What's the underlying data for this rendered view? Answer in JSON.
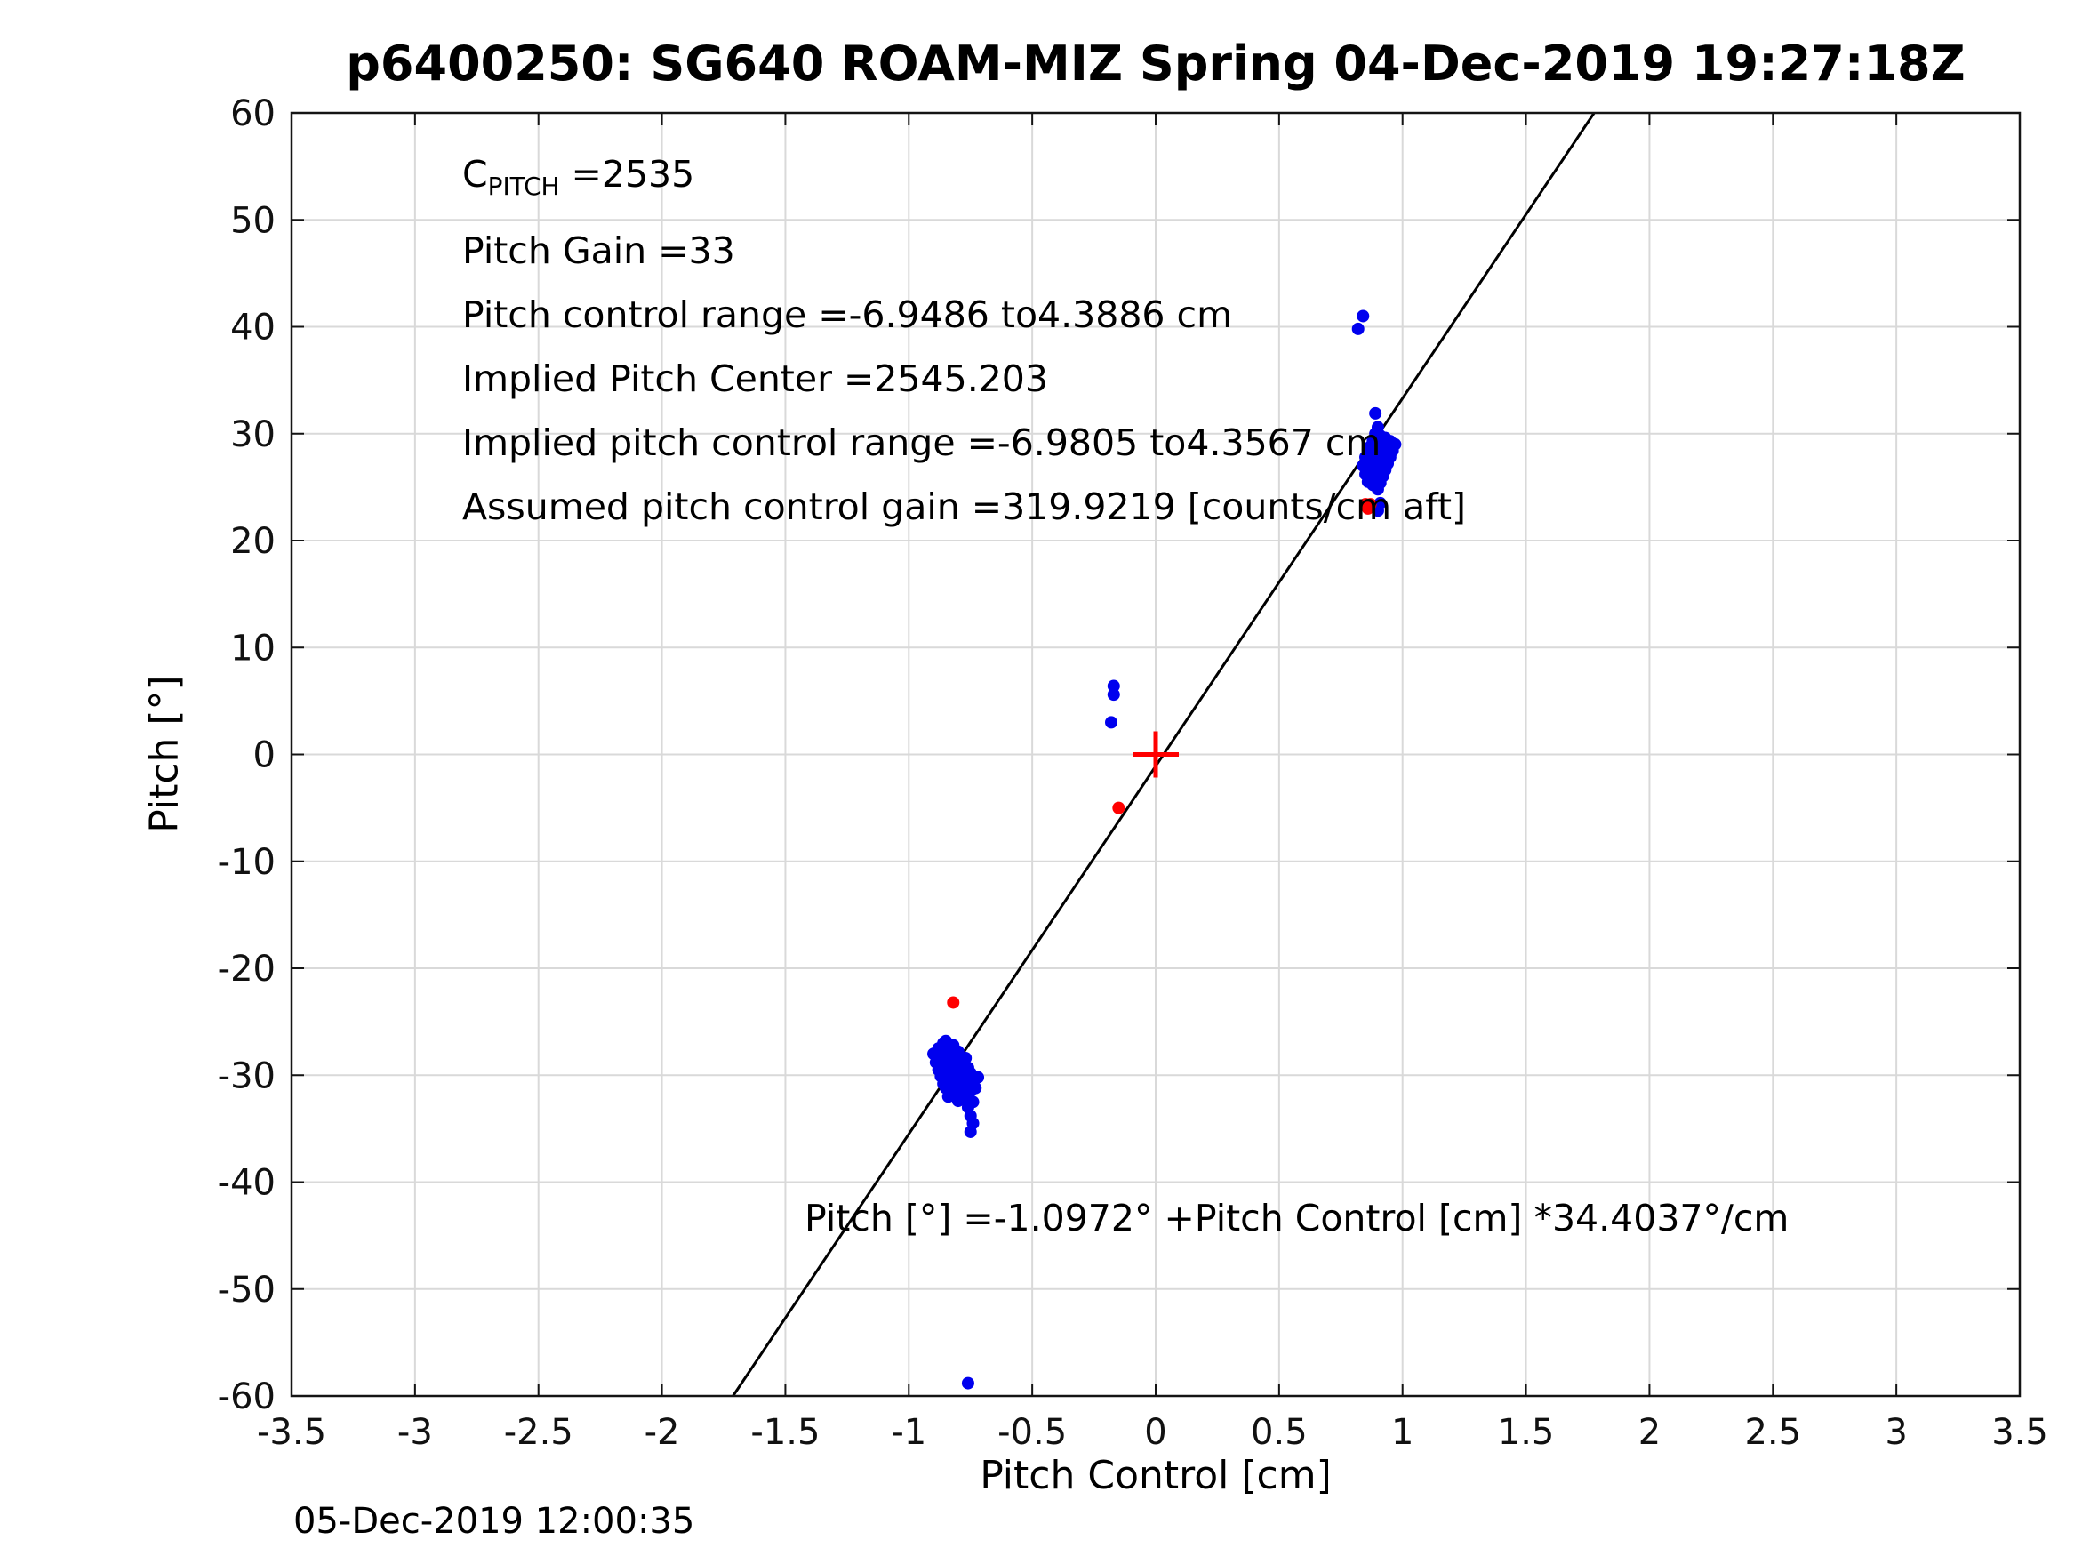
{
  "footer": {
    "timestamp": "05-Dec-2019 12:00:35"
  },
  "annotations": {
    "c_pitch": {
      "base": "C",
      "sub": "PITCH",
      "rest": " =2535"
    },
    "lines": [
      "Pitch Gain =33",
      "Pitch control range =-6.9486 to4.3886 cm",
      "Implied Pitch Center =2545.203",
      "Implied pitch control range =-6.9805 to4.3567 cm",
      "Assumed pitch control gain =319.9219 [counts/cm aft]"
    ],
    "fit_equation": "Pitch [°] =-1.0972° +Pitch Control [cm] *34.4037°/cm"
  },
  "chart_data": {
    "type": "scatter",
    "title": "p6400250: SG640 ROAM-MIZ Spring 04-Dec-2019 19:27:18Z",
    "xlabel": "Pitch Control [cm]",
    "ylabel": "Pitch [°]",
    "xlim": [
      -3.5,
      3.5
    ],
    "ylim": [
      -60,
      60
    ],
    "xticks": [
      -3.5,
      -3,
      -2.5,
      -2,
      -1.5,
      -1,
      -0.5,
      0,
      0.5,
      1,
      1.5,
      2,
      2.5,
      3,
      3.5
    ],
    "yticks": [
      -60,
      -50,
      -40,
      -30,
      -20,
      -10,
      0,
      10,
      20,
      30,
      40,
      50,
      60
    ],
    "grid": true,
    "legend": "none",
    "colors": {
      "points": "#0000ee",
      "flagged": "#ff0000",
      "fit_line": "#000000",
      "grid": "#d9d9d9",
      "axes": "#141414"
    },
    "fit_line": {
      "slope": 34.4037,
      "intercept": -1.0972,
      "units": "deg_per_cm"
    },
    "series": [
      {
        "name": "pitch-observations",
        "marker": "dot",
        "color": "#0000ee",
        "points": [
          [
            -0.9,
            -28.0
          ],
          [
            -0.89,
            -28.8
          ],
          [
            -0.88,
            -27.5
          ],
          [
            -0.88,
            -29.5
          ],
          [
            -0.87,
            -28.2
          ],
          [
            -0.87,
            -30.1
          ],
          [
            -0.86,
            -27.0
          ],
          [
            -0.86,
            -29.0
          ],
          [
            -0.86,
            -30.8
          ],
          [
            -0.85,
            -26.8
          ],
          [
            -0.85,
            -28.4
          ],
          [
            -0.85,
            -29.8
          ],
          [
            -0.85,
            -31.2
          ],
          [
            -0.84,
            -27.6
          ],
          [
            -0.84,
            -29.2
          ],
          [
            -0.84,
            -30.5
          ],
          [
            -0.84,
            -32.0
          ],
          [
            -0.83,
            -28.0
          ],
          [
            -0.83,
            -29.6
          ],
          [
            -0.83,
            -31.0
          ],
          [
            -0.82,
            -27.2
          ],
          [
            -0.82,
            -28.8
          ],
          [
            -0.82,
            -30.3
          ],
          [
            -0.82,
            -31.8
          ],
          [
            -0.81,
            -28.2
          ],
          [
            -0.81,
            -29.8
          ],
          [
            -0.81,
            -31.3
          ],
          [
            -0.8,
            -27.8
          ],
          [
            -0.8,
            -29.4
          ],
          [
            -0.8,
            -30.9
          ],
          [
            -0.8,
            -32.4
          ],
          [
            -0.79,
            -28.6
          ],
          [
            -0.79,
            -30.2
          ],
          [
            -0.78,
            -29.0
          ],
          [
            -0.78,
            -30.7
          ],
          [
            -0.78,
            -32.2
          ],
          [
            -0.77,
            -28.4
          ],
          [
            -0.77,
            -30.0
          ],
          [
            -0.77,
            -31.6
          ],
          [
            -0.76,
            -29.3
          ],
          [
            -0.76,
            -31.0
          ],
          [
            -0.76,
            -33.0
          ],
          [
            -0.75,
            -29.8
          ],
          [
            -0.75,
            -31.5
          ],
          [
            -0.75,
            -33.8
          ],
          [
            -0.75,
            -35.3
          ],
          [
            -0.74,
            -30.5
          ],
          [
            -0.74,
            -32.5
          ],
          [
            -0.74,
            -34.5
          ],
          [
            -0.73,
            -31.2
          ],
          [
            -0.72,
            -30.2
          ],
          [
            -0.76,
            -58.8
          ],
          [
            -0.17,
            6.4
          ],
          [
            -0.17,
            5.6
          ],
          [
            -0.18,
            3.0
          ],
          [
            0.84,
            27.0
          ],
          [
            0.85,
            26.2
          ],
          [
            0.85,
            27.8
          ],
          [
            0.86,
            25.5
          ],
          [
            0.86,
            27.0
          ],
          [
            0.86,
            28.5
          ],
          [
            0.87,
            26.0
          ],
          [
            0.87,
            27.4
          ],
          [
            0.87,
            28.8
          ],
          [
            0.88,
            25.2
          ],
          [
            0.88,
            26.6
          ],
          [
            0.88,
            28.0
          ],
          [
            0.88,
            29.4
          ],
          [
            0.89,
            25.8
          ],
          [
            0.89,
            27.2
          ],
          [
            0.89,
            28.6
          ],
          [
            0.89,
            30.0
          ],
          [
            0.9,
            24.8
          ],
          [
            0.9,
            26.3
          ],
          [
            0.9,
            27.7
          ],
          [
            0.9,
            29.2
          ],
          [
            0.9,
            30.6
          ],
          [
            0.91,
            25.4
          ],
          [
            0.91,
            26.9
          ],
          [
            0.91,
            28.3
          ],
          [
            0.91,
            29.8
          ],
          [
            0.92,
            26.0
          ],
          [
            0.92,
            27.5
          ],
          [
            0.92,
            29.0
          ],
          [
            0.93,
            26.6
          ],
          [
            0.93,
            28.1
          ],
          [
            0.93,
            29.6
          ],
          [
            0.94,
            27.2
          ],
          [
            0.94,
            28.7
          ],
          [
            0.95,
            27.8
          ],
          [
            0.95,
            29.3
          ],
          [
            0.96,
            28.4
          ],
          [
            0.97,
            29.0
          ],
          [
            0.89,
            31.9
          ],
          [
            0.9,
            22.8
          ],
          [
            0.91,
            23.5
          ],
          [
            0.84,
            41.0
          ],
          [
            0.82,
            39.8
          ]
        ]
      },
      {
        "name": "flagged-observations",
        "marker": "dot",
        "color": "#ff0000",
        "points": [
          [
            -0.15,
            -5.0
          ],
          [
            -0.82,
            -23.2
          ],
          [
            0.85,
            23.4
          ],
          [
            0.87,
            23.4
          ],
          [
            0.86,
            23.0
          ]
        ]
      },
      {
        "name": "pitch-center-marker",
        "marker": "plus",
        "color": "#ff0000",
        "points": [
          [
            0,
            0
          ]
        ]
      }
    ]
  }
}
